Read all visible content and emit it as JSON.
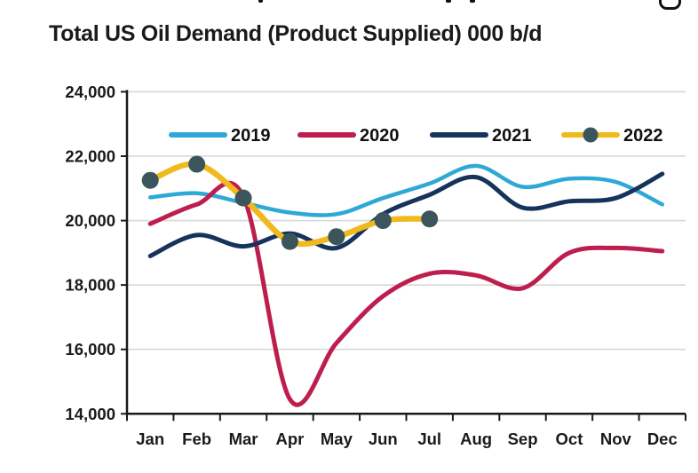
{
  "title": "Total US Oil Demand (Product Supplied) 000 b/d",
  "colors": {
    "series_2019": "#2EA9D6",
    "series_2020": "#BE1E4E",
    "series_2021": "#16335C",
    "series_2022": "#F0B91E",
    "marker_2022": "#3A555C",
    "gridline": "#D8D8D8",
    "axis": "#1A1A1A",
    "text": "#1A1A1A"
  },
  "legend": [
    {
      "label": "2019",
      "color": "#2EA9D6",
      "marker": false
    },
    {
      "label": "2020",
      "color": "#BE1E4E",
      "marker": false
    },
    {
      "label": "2021",
      "color": "#16335C",
      "marker": false
    },
    {
      "label": "2022",
      "color": "#F0B91E",
      "marker": true,
      "marker_color": "#3A555C"
    }
  ],
  "chart_data": {
    "type": "line",
    "title": "Total US Oil Demand (Product Supplied) 000 b/d",
    "unit": "000 b/d",
    "categories": [
      "Jan",
      "Feb",
      "Mar",
      "Apr",
      "May",
      "Jun",
      "Jul",
      "Aug",
      "Sep",
      "Oct",
      "Nov",
      "Dec"
    ],
    "xlabel": "",
    "ylabel": "",
    "ylim": [
      14000,
      24000
    ],
    "ytick_step": 2000,
    "ytick_labels": [
      "14,000",
      "16,000",
      "18,000",
      "20,000",
      "22,000",
      "24,000"
    ],
    "grid": true,
    "legend_position": "top-inside",
    "series": [
      {
        "name": "2019",
        "color": "#2EA9D6",
        "markers": false,
        "values": [
          20720,
          20850,
          20550,
          20250,
          20200,
          20700,
          21150,
          21700,
          21050,
          21300,
          21200,
          20500
        ]
      },
      {
        "name": "2020",
        "color": "#BE1E4E",
        "markers": false,
        "values": [
          19900,
          20500,
          20750,
          14450,
          16200,
          17650,
          18350,
          18300,
          17900,
          19000,
          19150,
          19050
        ]
      },
      {
        "name": "2021",
        "color": "#16335C",
        "markers": false,
        "values": [
          18900,
          19550,
          19200,
          19600,
          19150,
          20200,
          20800,
          21350,
          20400,
          20600,
          20700,
          21450
        ]
      },
      {
        "name": "2022",
        "color": "#F0B91E",
        "markers": true,
        "marker_color": "#3A555C",
        "values": [
          21250,
          21750,
          20700,
          19350,
          19500,
          20000,
          20050
        ]
      }
    ]
  }
}
